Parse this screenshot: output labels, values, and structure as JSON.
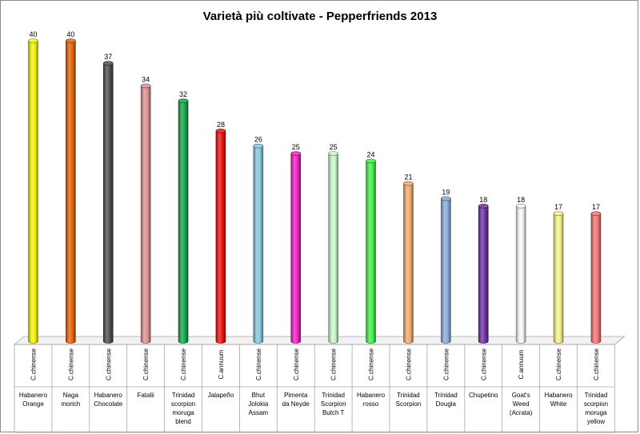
{
  "chart_data": {
    "type": "bar",
    "title": "Varietà più coltivate - Pepperfriends 2013",
    "xlabel": "",
    "ylabel": "",
    "ylim": [
      0,
      40
    ],
    "grid": false,
    "legend": "none",
    "categories": [
      {
        "species": "C.chinense",
        "name": "Habanero Orange"
      },
      {
        "species": "C.chinense",
        "name": "Naga morich"
      },
      {
        "species": "C.chinense",
        "name": "Habanero Chocolate"
      },
      {
        "species": "C.chinense",
        "name": "Fatalii"
      },
      {
        "species": "C.chinense",
        "name": "Trinidad scorpion moruga blend"
      },
      {
        "species": "C.annuum",
        "name": "Jalapeño"
      },
      {
        "species": "C.chinense",
        "name": "Bhut Jolokia Assam"
      },
      {
        "species": "C.chinense",
        "name": "Pimenta da Neyde"
      },
      {
        "species": "C.chinense",
        "name": "Trinidad Scorpion Butch T"
      },
      {
        "species": "C.chinense",
        "name": "Habanero rosso"
      },
      {
        "species": "C.chinense",
        "name": "Trinidad Scorpion"
      },
      {
        "species": "C.chinense",
        "name": "Trinidad Dougla"
      },
      {
        "species": "C.chinense",
        "name": "Chupetino"
      },
      {
        "species": "C.annuum",
        "name": "Goat's Weed (Acrata)"
      },
      {
        "species": "C.chinense",
        "name": "Habanero White"
      },
      {
        "species": "C.chinense",
        "name": "Trinidad scorpion moruga yellow"
      }
    ],
    "values": [
      40,
      40,
      37,
      34,
      32,
      28,
      26,
      25,
      25,
      24,
      21,
      19,
      18,
      18,
      17,
      17
    ],
    "colors": [
      "#f2f20a",
      "#e0630c",
      "#4d4d4d",
      "#d99191",
      "#16a34a",
      "#e81010",
      "#86c5dc",
      "#ec1fc2",
      "#c8f5c8",
      "#44ee44",
      "#f0aa70",
      "#8aa9d8",
      "#7030a0",
      "#f4f4f4",
      "#f4f08a",
      "#f07373"
    ],
    "label_wrap": [
      [
        "Habanero",
        "Orange"
      ],
      [
        "Naga",
        "morich"
      ],
      [
        "Habanero",
        "Chocolate"
      ],
      [
        "Fatalii"
      ],
      [
        "Trinidad",
        "scorpion",
        "moruga",
        "blend"
      ],
      [
        "Jalapeño"
      ],
      [
        "Bhut",
        "Jolokia",
        "Assam"
      ],
      [
        "Pimenta",
        "da Neyde"
      ],
      [
        "Trinidad",
        "Scorpion",
        "Butch T"
      ],
      [
        "Habanero",
        "rosso"
      ],
      [
        "Trinidad",
        "Scorpion"
      ],
      [
        "Trinidad",
        "Dougla"
      ],
      [
        "Chupetino"
      ],
      [
        "Goat's",
        "Weed",
        "(Acrata)"
      ],
      [
        "Habanero",
        "White"
      ],
      [
        "Trinidad",
        "scorpion",
        "moruga",
        "yellow"
      ]
    ]
  }
}
